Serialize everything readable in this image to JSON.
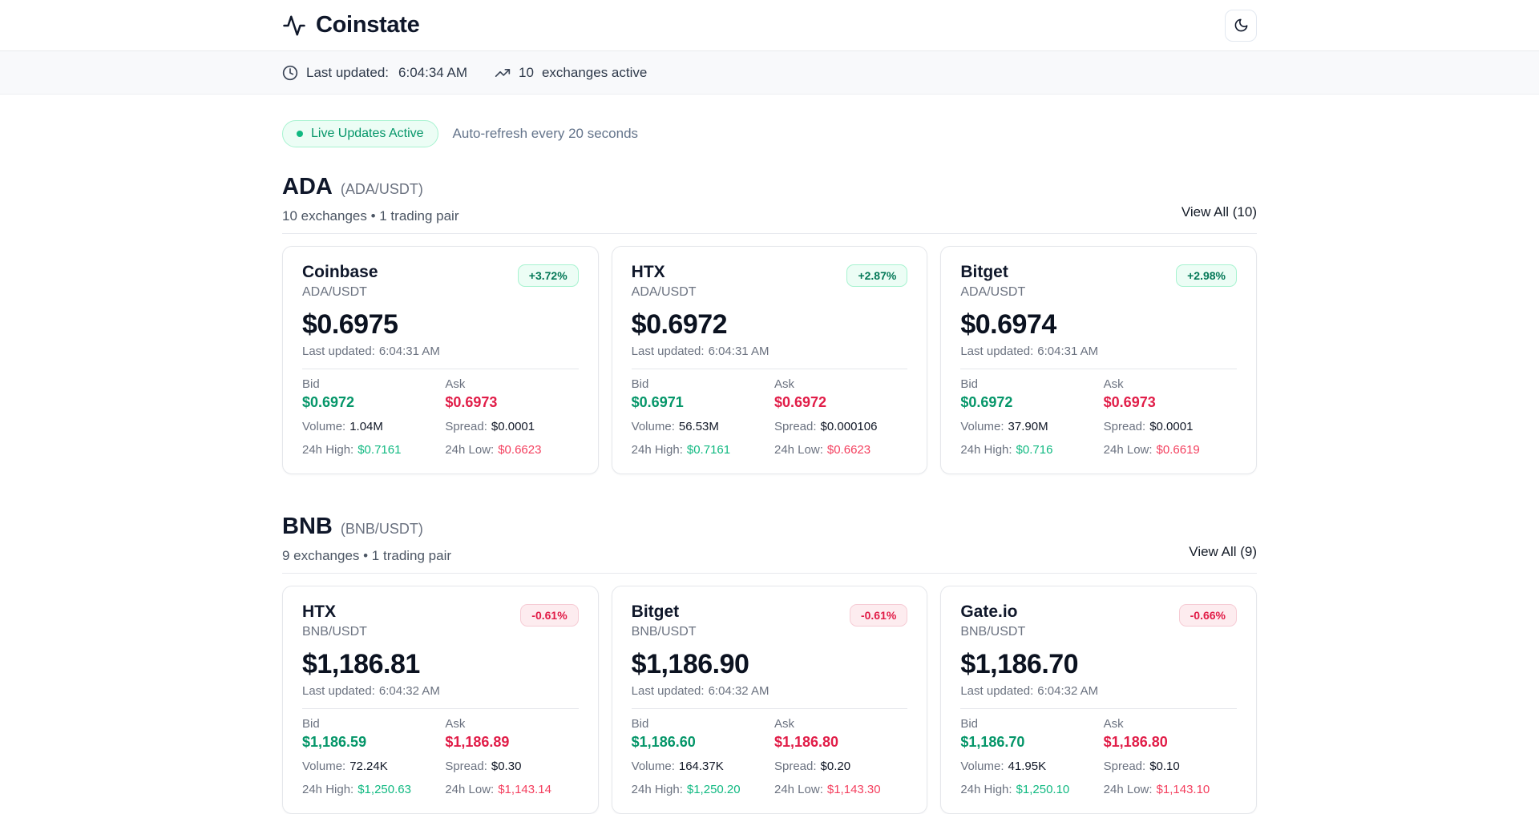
{
  "colors": {
    "accent_green": "#059669",
    "green_light": "#10b981",
    "accent_red": "#e11d48",
    "red_light": "#f43f5e",
    "badge_up_bg": "#ecfdf5",
    "badge_up_border": "#a7f3d0",
    "badge_up_text": "#047857",
    "badge_down_bg": "#fdecef",
    "badge_down_border": "#f6ccd5",
    "badge_down_text": "#e11d48",
    "live_dot": "#10b981",
    "statusbar_bg": "#f8f9fb"
  },
  "header": {
    "app_name": "Coinstate",
    "logo_icon": "activity-icon",
    "theme_toggle_icon": "moon-icon"
  },
  "statusbar": {
    "last_updated_label": "Last updated:",
    "last_updated_time": "6:04:34 AM",
    "exchange_count": "10",
    "exchange_count_label": "exchanges active"
  },
  "live_banner": {
    "badge_label": "Live Updates Active",
    "auto_refresh_text": "Auto-refresh every 20 seconds"
  },
  "labels": {
    "bid": "Bid",
    "ask": "Ask",
    "volume": "Volume:",
    "spread": "Spread:",
    "high": "24h High:",
    "low": "24h Low:",
    "updated": "Last updated:"
  },
  "sections": [
    {
      "symbol": "ADA",
      "pair": "(ADA/USDT)",
      "meta": "10 exchanges • 1 trading pair",
      "view_all": "View All (10)",
      "cards": [
        {
          "name": "Coinbase",
          "pair": "ADA/USDT",
          "change": "+3.72%",
          "direction": "up",
          "price": "$0.6975",
          "updated_time": "6:04:31 AM",
          "bid": "$0.6972",
          "ask": "$0.6973",
          "volume": "1.04M",
          "spread": "$0.0001",
          "high": "$0.7161",
          "low": "$0.6623"
        },
        {
          "name": "HTX",
          "pair": "ADA/USDT",
          "change": "+2.87%",
          "direction": "up",
          "price": "$0.6972",
          "updated_time": "6:04:31 AM",
          "bid": "$0.6971",
          "ask": "$0.6972",
          "volume": "56.53M",
          "spread": "$0.000106",
          "high": "$0.7161",
          "low": "$0.6623"
        },
        {
          "name": "Bitget",
          "pair": "ADA/USDT",
          "change": "+2.98%",
          "direction": "up",
          "price": "$0.6974",
          "updated_time": "6:04:31 AM",
          "bid": "$0.6972",
          "ask": "$0.6973",
          "volume": "37.90M",
          "spread": "$0.0001",
          "high": "$0.716",
          "low": "$0.6619"
        }
      ]
    },
    {
      "symbol": "BNB",
      "pair": "(BNB/USDT)",
      "meta": "9 exchanges • 1 trading pair",
      "view_all": "View All (9)",
      "cards": [
        {
          "name": "HTX",
          "pair": "BNB/USDT",
          "change": "-0.61%",
          "direction": "down",
          "price": "$1,186.81",
          "updated_time": "6:04:32 AM",
          "bid": "$1,186.59",
          "ask": "$1,186.89",
          "volume": "72.24K",
          "spread": "$0.30",
          "high": "$1,250.63",
          "low": "$1,143.14"
        },
        {
          "name": "Bitget",
          "pair": "BNB/USDT",
          "change": "-0.61%",
          "direction": "down",
          "price": "$1,186.90",
          "updated_time": "6:04:32 AM",
          "bid": "$1,186.60",
          "ask": "$1,186.80",
          "volume": "164.37K",
          "spread": "$0.20",
          "high": "$1,250.20",
          "low": "$1,143.30"
        },
        {
          "name": "Gate.io",
          "pair": "BNB/USDT",
          "change": "-0.66%",
          "direction": "down",
          "price": "$1,186.70",
          "updated_time": "6:04:32 AM",
          "bid": "$1,186.70",
          "ask": "$1,186.80",
          "volume": "41.95K",
          "spread": "$0.10",
          "high": "$1,250.10",
          "low": "$1,143.10"
        }
      ]
    }
  ]
}
